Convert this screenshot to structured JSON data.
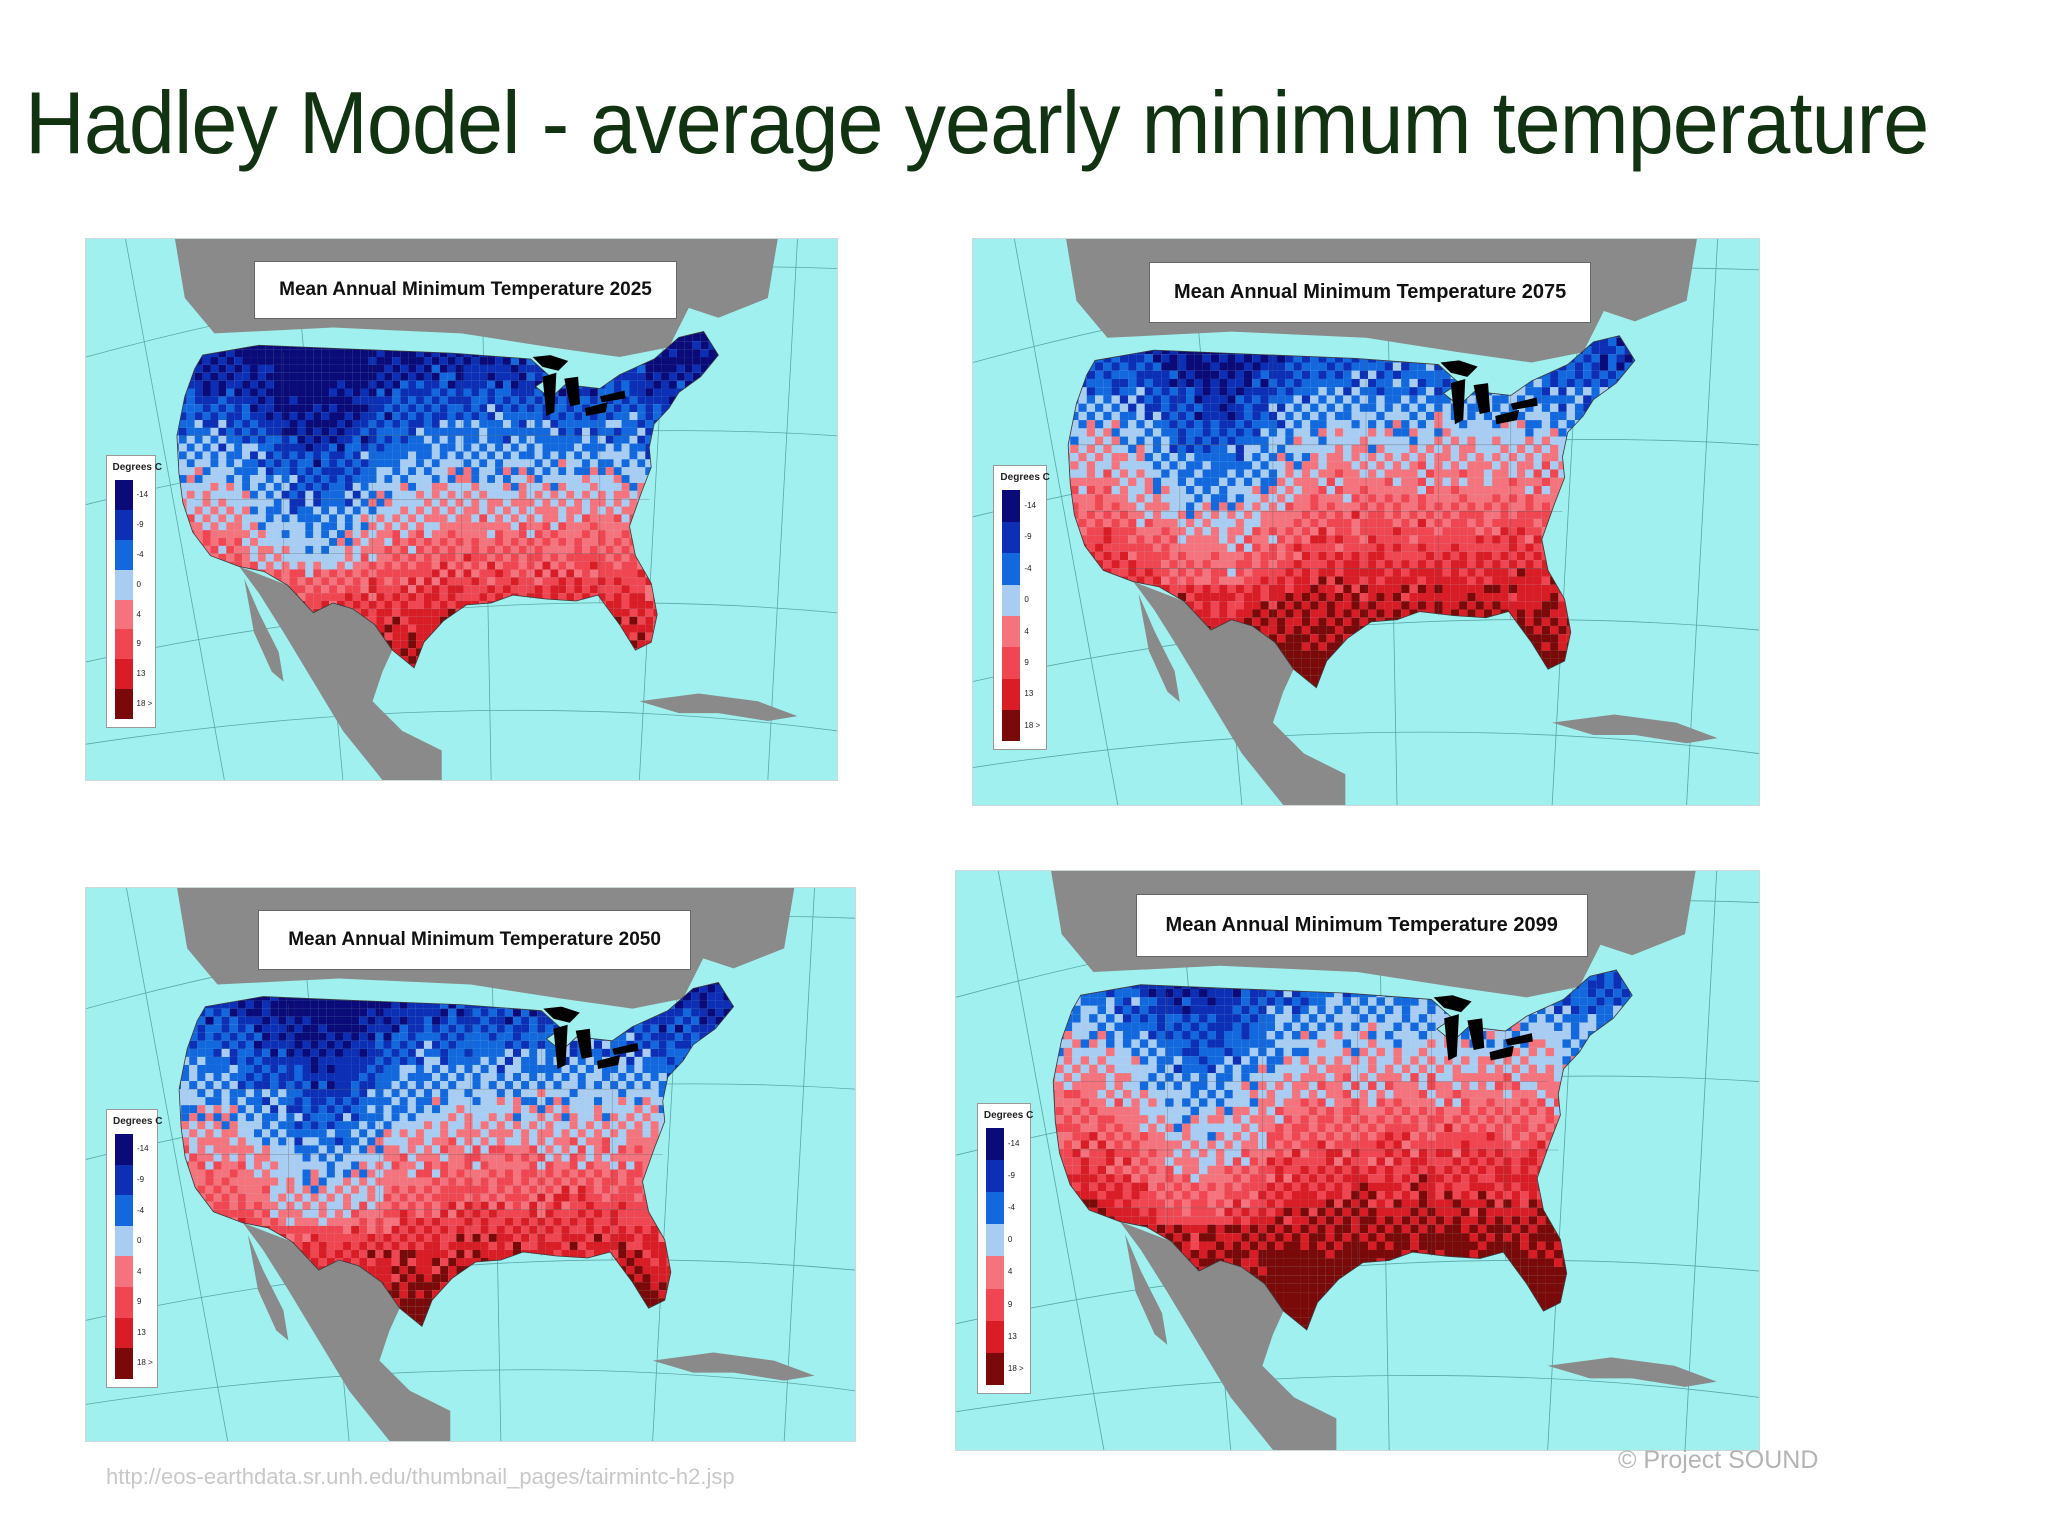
{
  "slide": {
    "title": "Hadley Model -  average yearly minimum temperature",
    "footer_url": "http://eos-earthdata.sr.unh.edu/thumbnail_pages/tairmintc-h2.jsp",
    "copyright": "© Project  SOUND"
  },
  "legend": {
    "title": "Degrees C",
    "entries": [
      {
        "label": "-14",
        "color": "#0a0a78"
      },
      {
        "label": "-9",
        "color": "#0c2fb6"
      },
      {
        "label": "-4",
        "color": "#1368dd"
      },
      {
        "label": "0",
        "color": "#a9cdf2"
      },
      {
        "label": "4",
        "color": "#f4737c"
      },
      {
        "label": "9",
        "color": "#ef4652"
      },
      {
        "label": "13",
        "color": "#d91d27"
      },
      {
        "label": "18 >",
        "color": "#7a0a0a"
      }
    ]
  },
  "maps": [
    {
      "title": "Mean Annual Minimum Temperature 2025",
      "year": "2025",
      "warming": 0
    },
    {
      "title": "Mean Annual Minimum Temperature 2075",
      "year": "2075",
      "warming": 2
    },
    {
      "title": "Mean Annual Minimum Temperature 2050",
      "year": "2050",
      "warming": 1
    },
    {
      "title": "Mean Annual Minimum Temperature 2099",
      "year": "2099",
      "warming": 3
    }
  ],
  "colors": {
    "ocean": "#9ff0ee",
    "land": "#8a8a8a",
    "lakes": "#000000",
    "title_text": "#113311"
  }
}
